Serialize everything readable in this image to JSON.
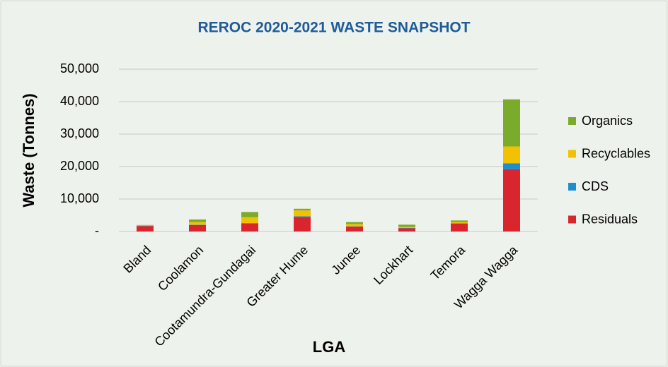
{
  "chart_data": {
    "type": "stacked_bar",
    "title": "REROC 2020-2021 WASTE SNAPSHOT",
    "x_label": "LGA",
    "y_label": "Waste (Tonnes)",
    "categories": [
      "Bland",
      "Coolamon",
      "Cootamundra-Gundagai",
      "Greater Hume",
      "Junee",
      "Lockhart",
      "Temora",
      "Wagga Wagga"
    ],
    "series": [
      {
        "name": "Residuals",
        "color": "#d9262e",
        "values": [
          1700,
          2000,
          2400,
          4500,
          1500,
          1000,
          2400,
          19200
        ]
      },
      {
        "name": "CDS",
        "color": "#1a8fd1",
        "values": [
          100,
          100,
          200,
          200,
          100,
          100,
          100,
          1800
        ]
      },
      {
        "name": "Recyclables",
        "color": "#f2c200",
        "values": [
          100,
          800,
          1800,
          1800,
          700,
          300,
          400,
          5200
        ]
      },
      {
        "name": "Organics",
        "color": "#7aab2a",
        "values": [
          100,
          800,
          1600,
          500,
          600,
          700,
          500,
          14500
        ]
      }
    ],
    "ylim": [
      0,
      50000
    ],
    "yticks": [
      {
        "value": 0,
        "label": "-"
      },
      {
        "value": 10000,
        "label": "10,000"
      },
      {
        "value": 20000,
        "label": "20,000"
      },
      {
        "value": 30000,
        "label": "30,000"
      },
      {
        "value": 40000,
        "label": "40,000"
      },
      {
        "value": 50000,
        "label": "50,000"
      }
    ],
    "grid": true,
    "legend": "right"
  }
}
